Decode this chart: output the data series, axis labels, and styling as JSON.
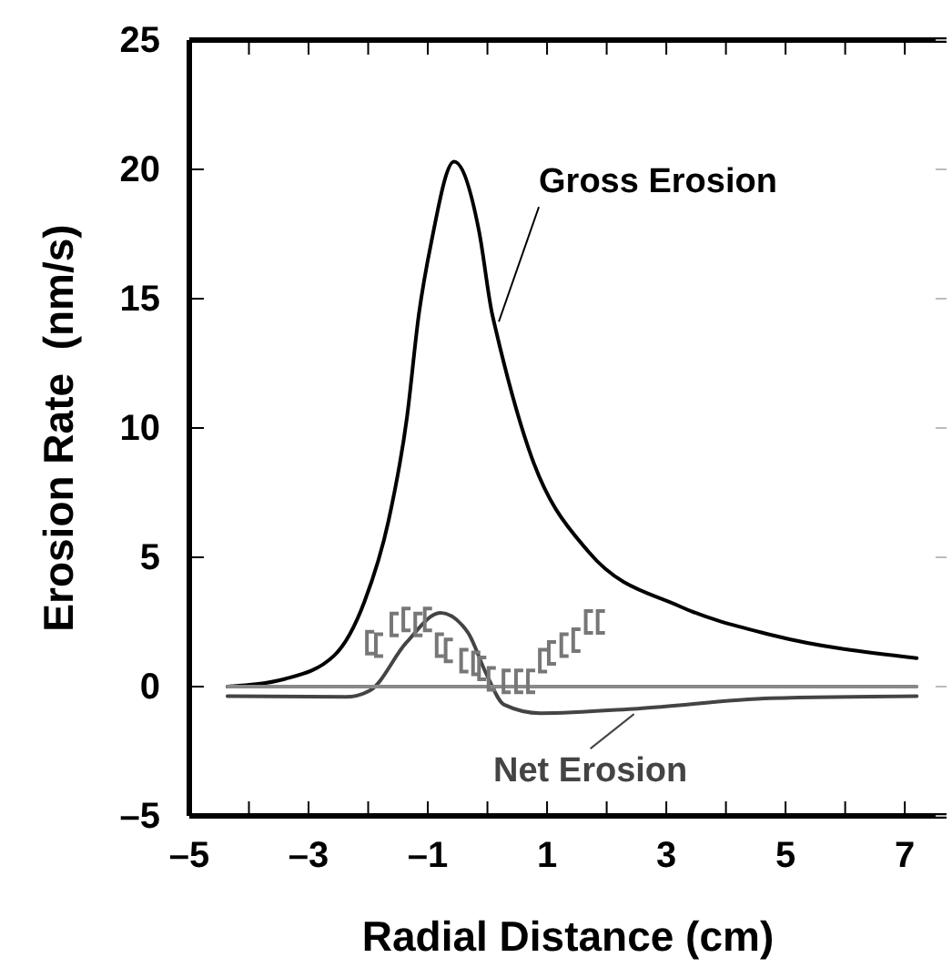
{
  "chart_data": {
    "type": "line",
    "xlabel": "Radial Distance (cm)",
    "ylabel": "Erosion Rate  (nm/s)",
    "xlim": [
      -5,
      7.7
    ],
    "ylim": [
      -5,
      25
    ],
    "xticks": [
      {
        "value": -5,
        "label": "–5"
      },
      {
        "value": -4,
        "label": null
      },
      {
        "value": -3,
        "label": "–3"
      },
      {
        "value": -2,
        "label": null
      },
      {
        "value": -1,
        "label": "–1"
      },
      {
        "value": 0,
        "label": null
      },
      1,
      {
        "value": 2,
        "label": null
      },
      3,
      {
        "value": 4,
        "label": null
      },
      5,
      {
        "value": 6,
        "label": null
      },
      7
    ],
    "yticks": [
      {
        "value": -5,
        "label": "–5"
      },
      0,
      5,
      10,
      15,
      20,
      25
    ],
    "grid": false,
    "series": [
      {
        "name": "Gross Erosion",
        "color": "#000000",
        "x": [
          -4.36,
          -3.39,
          -2.57,
          -2.06,
          -1.66,
          -1.35,
          -1.15,
          -0.94,
          -0.56,
          -0.14,
          0.08,
          0.13,
          0.69,
          1.7,
          3.23,
          4.76,
          7.2
        ],
        "values": [
          0,
          0.3,
          1.2,
          3.3,
          6.4,
          10.4,
          14.4,
          17.2,
          20.3,
          17.6,
          14.4,
          13.9,
          9.2,
          5.2,
          3.1,
          2.0,
          1.1
        ]
      },
      {
        "name": "Net Erosion",
        "color": "#444444",
        "x": [
          -4.36,
          -2.37,
          -1.97,
          -1.36,
          -0.79,
          -0.33,
          -0.02,
          0.28,
          0.89,
          2.52,
          4.76,
          7.2
        ],
        "values": [
          -0.37,
          -0.4,
          -0.15,
          1.7,
          2.85,
          2.1,
          0.5,
          -0.7,
          -1.03,
          -0.85,
          -0.45,
          -0.37
        ]
      },
      {
        "color": "#888888",
        "x": [
          -4.36,
          7.2
        ],
        "values": [
          0,
          0
        ]
      },
      {
        "type": "scatter",
        "color": "#777777",
        "x": [
          -1.96,
          -1.81,
          -1.55,
          -1.35,
          -1.15,
          -0.99,
          -0.79,
          -0.64,
          -0.38,
          -0.18,
          -0.08,
          0.08,
          0.33,
          0.54,
          0.74,
          0.94,
          1.09,
          1.3,
          1.5,
          1.71,
          1.91
        ],
        "values": [
          1.7,
          1.6,
          2.4,
          2.6,
          2.4,
          2.6,
          1.6,
          1.4,
          1.0,
          0.9,
          0.7,
          0.3,
          0.2,
          0.2,
          0.2,
          1.0,
          1.3,
          1.6,
          1.8,
          2.5,
          2.5
        ]
      }
    ]
  }
}
